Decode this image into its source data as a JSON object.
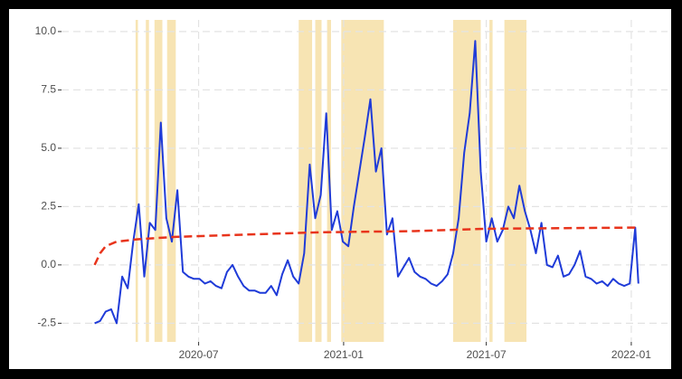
{
  "chart_data": {
    "type": "line",
    "xlim": [
      "2020-01-09",
      "2022-02-16"
    ],
    "ylim": [
      -3.3,
      10.5
    ],
    "yticks": [
      {
        "value": -2.5,
        "label": "-2.5"
      },
      {
        "value": 0,
        "label": "0.0"
      },
      {
        "value": 2.5,
        "label": "2.5"
      },
      {
        "value": 5,
        "label": "5.0"
      },
      {
        "value": 7.5,
        "label": "7.5"
      },
      {
        "value": 10,
        "label": "10.0"
      }
    ],
    "xticks": [
      {
        "value": "2020-07-01",
        "label": "2020-07"
      },
      {
        "value": "2021-01-01",
        "label": "2021-01"
      },
      {
        "value": "2021-07-01",
        "label": "2021-07"
      },
      {
        "value": "2022-01-01",
        "label": "2022-01"
      }
    ],
    "grid": true,
    "band_color": "#f7e4b3",
    "bands": [
      {
        "start": "2020-04-12",
        "end": "2020-04-15"
      },
      {
        "start": "2020-04-25",
        "end": "2020-04-29"
      },
      {
        "start": "2020-05-06",
        "end": "2020-05-16"
      },
      {
        "start": "2020-05-22",
        "end": "2020-06-02"
      },
      {
        "start": "2020-11-05",
        "end": "2020-11-22"
      },
      {
        "start": "2020-11-26",
        "end": "2020-12-04"
      },
      {
        "start": "2020-12-11",
        "end": "2020-12-16"
      },
      {
        "start": "2020-12-29",
        "end": "2021-02-21"
      },
      {
        "start": "2021-05-20",
        "end": "2021-06-24"
      },
      {
        "start": "2021-07-05",
        "end": "2021-07-09"
      },
      {
        "start": "2021-07-24",
        "end": "2021-08-21"
      }
    ],
    "series": [
      {
        "color": "#1f3bd8",
        "dash": false,
        "x": [
          "2020-02-20",
          "2020-02-27",
          "2020-03-05",
          "2020-03-12",
          "2020-03-19",
          "2020-03-26",
          "2020-04-02",
          "2020-04-09",
          "2020-04-16",
          "2020-04-23",
          "2020-04-30",
          "2020-05-07",
          "2020-05-14",
          "2020-05-21",
          "2020-05-28",
          "2020-06-04",
          "2020-06-11",
          "2020-06-18",
          "2020-06-25",
          "2020-07-02",
          "2020-07-09",
          "2020-07-16",
          "2020-07-23",
          "2020-07-30",
          "2020-08-06",
          "2020-08-13",
          "2020-08-20",
          "2020-08-27",
          "2020-09-03",
          "2020-09-10",
          "2020-09-17",
          "2020-09-24",
          "2020-10-01",
          "2020-10-08",
          "2020-10-15",
          "2020-10-22",
          "2020-10-29",
          "2020-11-05",
          "2020-11-12",
          "2020-11-19",
          "2020-11-26",
          "2020-12-03",
          "2020-12-10",
          "2020-12-17",
          "2020-12-24",
          "2020-12-31",
          "2021-01-07",
          "2021-01-14",
          "2021-01-21",
          "2021-01-28",
          "2021-02-04",
          "2021-02-11",
          "2021-02-18",
          "2021-02-25",
          "2021-03-04",
          "2021-03-11",
          "2021-03-18",
          "2021-03-25",
          "2021-04-01",
          "2021-04-08",
          "2021-04-15",
          "2021-04-22",
          "2021-04-29",
          "2021-05-06",
          "2021-05-13",
          "2021-05-20",
          "2021-05-27",
          "2021-06-03",
          "2021-06-10",
          "2021-06-17",
          "2021-06-24",
          "2021-07-01",
          "2021-07-08",
          "2021-07-15",
          "2021-07-22",
          "2021-07-29",
          "2021-08-05",
          "2021-08-12",
          "2021-08-19",
          "2021-08-26",
          "2021-09-02",
          "2021-09-09",
          "2021-09-16",
          "2021-09-23",
          "2021-09-30",
          "2021-10-07",
          "2021-10-14",
          "2021-10-21",
          "2021-10-28",
          "2021-11-04",
          "2021-11-11",
          "2021-11-18",
          "2021-11-25",
          "2021-12-02",
          "2021-12-09",
          "2021-12-16",
          "2021-12-23",
          "2021-12-30",
          "2022-01-06",
          "2022-01-10"
        ],
        "values": [
          -2.5,
          -2.4,
          -2.0,
          -1.9,
          -2.5,
          -0.5,
          -1.0,
          1.0,
          2.6,
          -0.5,
          1.8,
          1.5,
          6.1,
          2.0,
          1.0,
          3.2,
          -0.3,
          -0.5,
          -0.6,
          -0.6,
          -0.8,
          -0.7,
          -0.9,
          -1.0,
          -0.3,
          0.0,
          -0.5,
          -0.9,
          -1.1,
          -1.1,
          -1.2,
          -1.2,
          -0.9,
          -1.3,
          -0.4,
          0.2,
          -0.5,
          -0.8,
          0.5,
          4.3,
          2.0,
          3.0,
          6.5,
          1.5,
          2.3,
          1.0,
          0.8,
          2.5,
          4.0,
          5.5,
          7.1,
          4.0,
          5.0,
          1.3,
          2.0,
          -0.5,
          -0.1,
          0.3,
          -0.3,
          -0.5,
          -0.6,
          -0.8,
          -0.9,
          -0.7,
          -0.4,
          0.5,
          2.0,
          4.8,
          6.5,
          9.6,
          4.0,
          1.0,
          2.0,
          1.0,
          1.5,
          2.5,
          2.0,
          3.4,
          2.3,
          1.5,
          0.5,
          1.8,
          0.0,
          -0.1,
          0.4,
          -0.5,
          -0.4,
          0.0,
          0.6,
          -0.5,
          -0.6,
          -0.8,
          -0.7,
          -0.9,
          -0.6,
          -0.8,
          -0.9,
          -0.8,
          1.6,
          -0.8
        ]
      },
      {
        "color": "#e8341c",
        "dash": true,
        "x": [
          "2020-02-20",
          "2020-02-27",
          "2020-03-05",
          "2020-03-19",
          "2020-04-15",
          "2020-06-01",
          "2020-09-01",
          "2020-12-01",
          "2021-04-01",
          "2021-07-01",
          "2022-01-06"
        ],
        "values": [
          0.0,
          0.5,
          0.8,
          1.0,
          1.1,
          1.2,
          1.3,
          1.4,
          1.45,
          1.55,
          1.6
        ]
      }
    ]
  }
}
